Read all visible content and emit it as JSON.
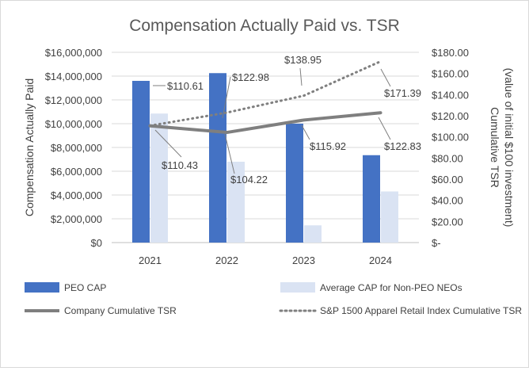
{
  "chart_data": {
    "type": "bar",
    "title": "Compensation Actually Paid vs. TSR",
    "categories": [
      "2021",
      "2022",
      "2023",
      "2024"
    ],
    "y_left": {
      "label": "Compensation Actually Paid",
      "ylim": [
        0,
        16000000
      ],
      "ticks": [
        "$0",
        "$2,000,000",
        "$4,000,000",
        "$6,000,000",
        "$8,000,000",
        "$10,000,000",
        "$12,000,000",
        "$14,000,000",
        "$16,000,000"
      ]
    },
    "y_right": {
      "label_line1": "Cumulative TSR",
      "label_line2": "(value of initial $100 investment)",
      "ylim": [
        0,
        180
      ],
      "ticks": [
        "$-",
        "$20.00",
        "$40.00",
        "$60.00",
        "$80.00",
        "$100.00",
        "$120.00",
        "$140.00",
        "$160.00",
        "$180.00"
      ]
    },
    "series": [
      {
        "name": "PEO CAP",
        "type": "bar",
        "axis": "left",
        "color": "#4472c4",
        "values": [
          13600000,
          14250000,
          10000000,
          7350000
        ]
      },
      {
        "name": "Average CAP for Non-PEO NEOs",
        "type": "bar",
        "axis": "left",
        "color": "#dae3f3",
        "values": [
          10850000,
          6800000,
          1450000,
          4300000
        ]
      },
      {
        "name": "Company Cumulative TSR",
        "type": "line",
        "axis": "right",
        "color": "#7f7f7f",
        "values": [
          110.43,
          104.22,
          115.92,
          122.83
        ],
        "labels": [
          "$110.43",
          "$104.22",
          "$115.92",
          "$122.83"
        ]
      },
      {
        "name": "S&P 1500 Apparel Retail Index Cumulative TSR",
        "type": "line",
        "style": "dotted",
        "axis": "right",
        "color": "#7f7f7f",
        "values": [
          110.61,
          122.98,
          138.95,
          171.39
        ],
        "labels": [
          "$110.61",
          "$122.98",
          "$138.95",
          "$171.39"
        ]
      }
    ],
    "grid": true,
    "legend": "bottom"
  }
}
